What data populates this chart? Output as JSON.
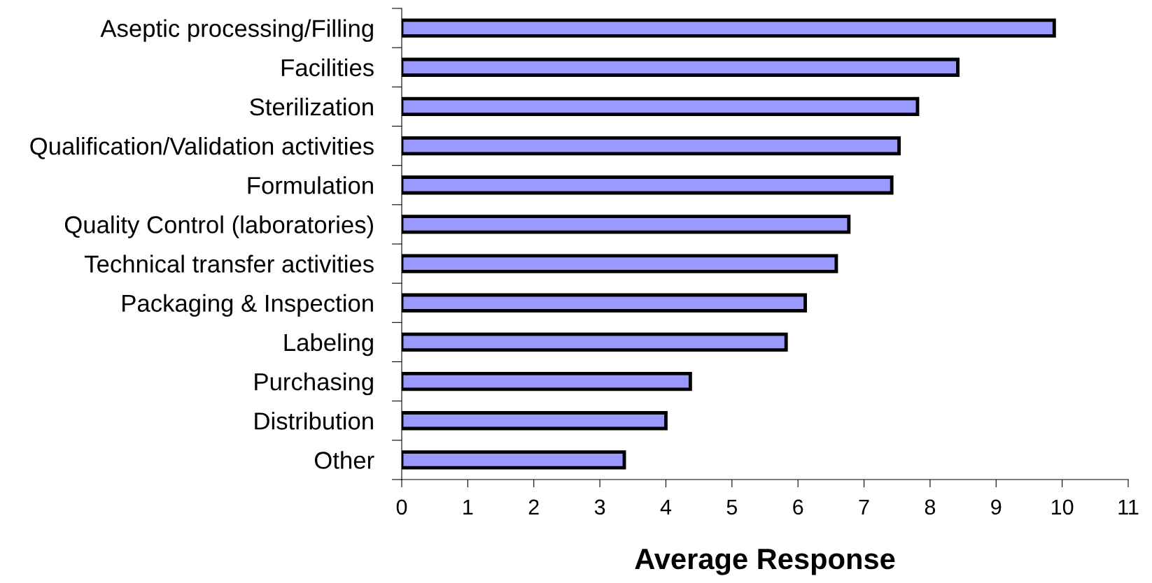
{
  "chart_data": {
    "type": "bar",
    "orientation": "horizontal",
    "xlabel": "Average Response",
    "categories": [
      "Aseptic processing/Filling",
      "Facilities",
      "Sterilization",
      "Qualification/Validation activities",
      "Formulation",
      "Quality Control (laboratories)",
      "Technical transfer activities",
      "Packaging & Inspection",
      "Labeling",
      "Purchasing",
      "Distribution",
      "Other"
    ],
    "values": [
      9.88,
      8.42,
      7.81,
      7.53,
      7.42,
      6.77,
      6.58,
      6.11,
      5.82,
      4.37,
      4.0,
      3.37
    ],
    "color": "#9999ff",
    "xlim": [
      0,
      11
    ],
    "xticks": [
      0,
      1,
      2,
      3,
      4,
      5,
      6,
      7,
      8,
      9,
      10,
      11
    ],
    "grid": false,
    "legend": false
  }
}
